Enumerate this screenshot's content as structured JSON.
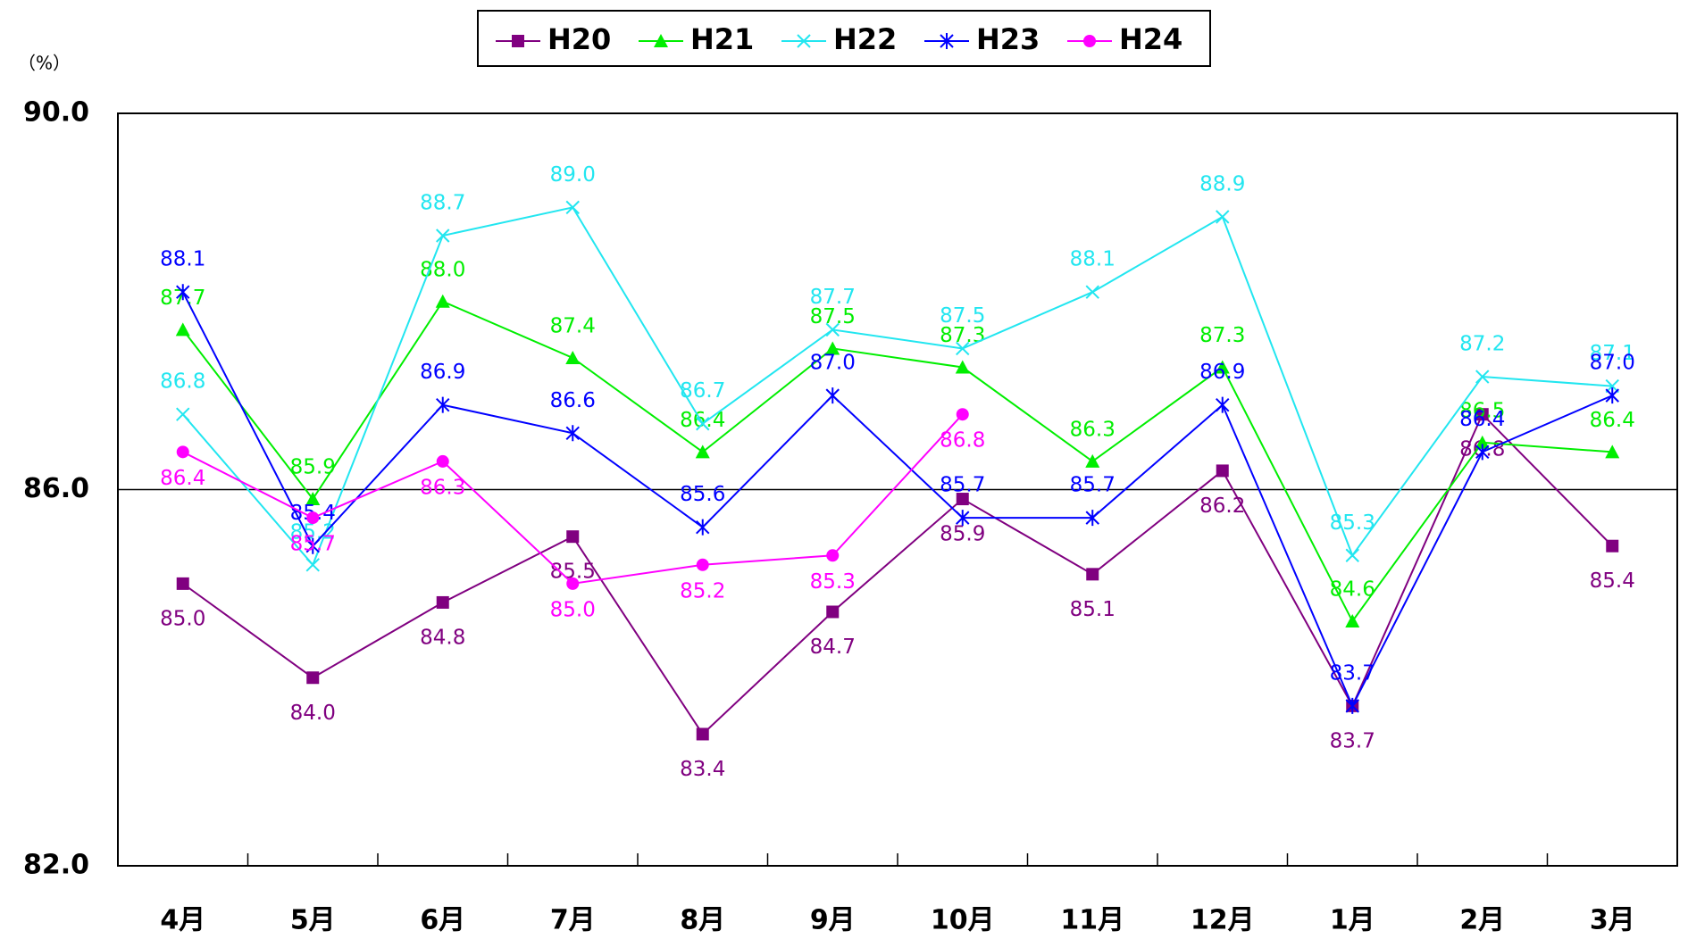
{
  "chart_data": {
    "type": "line",
    "y_label": "（%）",
    "categories": [
      "4月",
      "5月",
      "6月",
      "7月",
      "8月",
      "9月",
      "10月",
      "11月",
      "12月",
      "1月",
      "2月",
      "3月"
    ],
    "ylim": [
      82,
      90
    ],
    "yticks": [
      {
        "value": 82,
        "label": "82.0"
      },
      {
        "value": 86,
        "label": "86.0"
      },
      {
        "value": 90,
        "label": "90.0"
      }
    ],
    "grid": true,
    "legend": "top",
    "series": [
      {
        "name": "H20",
        "color": "#800080",
        "marker": "square",
        "values": [
          85.0,
          84.0,
          84.8,
          85.5,
          83.4,
          84.7,
          85.9,
          85.1,
          86.2,
          83.7,
          86.8,
          85.4
        ],
        "value_labels": [
          "85.0",
          "84.0",
          "84.8",
          "85.5",
          "83.4",
          "84.7",
          "85.9",
          "85.1",
          "86.2",
          "83.7",
          "86.8",
          "85.4"
        ]
      },
      {
        "name": "H21",
        "color": "#00ee00",
        "marker": "triangle",
        "values": [
          87.7,
          85.9,
          88.0,
          87.4,
          86.4,
          87.5,
          87.3,
          86.3,
          87.3,
          84.6,
          86.5,
          86.4
        ],
        "value_labels": [
          "87.7",
          "85.9",
          "88.0",
          "87.4",
          "86.4",
          "87.5",
          "87.3",
          "86.3",
          "87.3",
          "84.6",
          "86.5",
          "86.4"
        ]
      },
      {
        "name": "H22",
        "color": "#22e6f0",
        "marker": "x",
        "values": [
          86.8,
          85.2,
          88.7,
          89.0,
          86.7,
          87.7,
          87.5,
          88.1,
          88.9,
          85.3,
          87.2,
          87.1
        ],
        "value_labels": [
          "86.8",
          "85.2",
          "88.7",
          "89.0",
          "86.7",
          "87.7",
          "87.5",
          "88.1",
          "88.9",
          "85.3",
          "87.2",
          "87.1"
        ]
      },
      {
        "name": "H23",
        "color": "#0000ff",
        "marker": "asterisk",
        "values": [
          88.1,
          85.4,
          86.9,
          86.6,
          85.6,
          87.0,
          85.7,
          85.7,
          86.9,
          83.7,
          86.4,
          87.0
        ],
        "value_labels": [
          "88.1",
          "85.4",
          "86.9",
          "86.6",
          "85.6",
          "87.0",
          "85.7",
          "85.7",
          "86.9",
          "83.7",
          "86.4",
          "87.0"
        ]
      },
      {
        "name": "H24",
        "color": "#ff00ff",
        "marker": "circle",
        "values": [
          86.4,
          85.7,
          86.3,
          85.0,
          85.2,
          85.3,
          86.8,
          null,
          null,
          null,
          null,
          null
        ],
        "value_labels": [
          "86.4",
          "85.7",
          "86.3",
          "85.0",
          "85.2",
          "85.3",
          "86.8",
          null,
          null,
          null,
          null,
          null
        ]
      }
    ]
  }
}
